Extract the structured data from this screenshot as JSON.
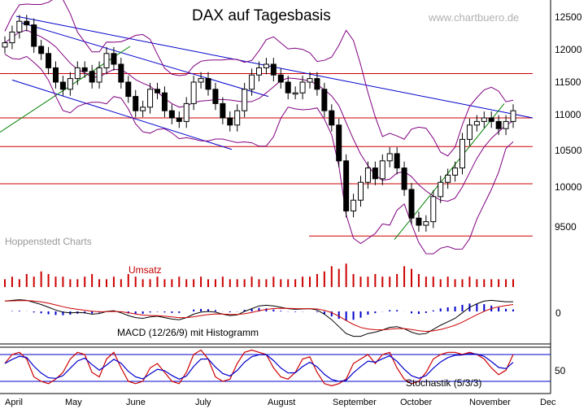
{
  "chart_data": {
    "type": "candlestick",
    "title": "DAX auf Tagesbasis",
    "watermark": "www.chartbuero.de",
    "source": "Hoppenstedt Charts",
    "months": [
      "April",
      "May",
      "June",
      "July",
      "August",
      "September",
      "October",
      "November",
      "Dec"
    ],
    "price_axis": {
      "ticks": [
        "12500",
        "12000",
        "11500",
        "11000",
        "10500",
        "10000",
        "9500"
      ],
      "range": [
        9000,
        12700
      ]
    },
    "volume_label": "Umsatz",
    "macd": {
      "label": "MACD (12/26/9) mit Histogramm",
      "tick": "0"
    },
    "stochastic": {
      "label": "Stochastik (5/3/3)",
      "tick": "50",
      "levels": [
        20,
        80
      ]
    },
    "horizontal_levels": [
      11620,
      11000,
      10600,
      10080,
      9350
    ],
    "colors": {
      "candle": "#000000",
      "band": "#800080",
      "trend": "#0000cc",
      "support": "#cc0000",
      "uptrend": "#008000",
      "volume": "#cc0000",
      "histogram": "#0000cc",
      "stoch_k": "#cc0000",
      "stoch_d": "#0000cc"
    },
    "series": [
      {
        "name": "DAX close (approx.)",
        "values": [
          12050,
          12200,
          12350,
          12300,
          12000,
          11900,
          11700,
          11500,
          11400,
          11550,
          11700,
          11650,
          11500,
          11700,
          11900,
          11750,
          11500,
          11300,
          11100,
          11150,
          11400,
          11350,
          11100,
          11000,
          10950,
          11200,
          11500,
          11550,
          11400,
          11200,
          11000,
          10900,
          11100,
          11400,
          11600,
          11700,
          11750,
          11600,
          11500,
          11350,
          11350,
          11500,
          11550,
          11400,
          11100,
          10900,
          10400,
          9700,
          9850,
          10100,
          10300,
          10150,
          10400,
          10500,
          10300,
          10000,
          9600,
          9500,
          9550,
          9900,
          10100,
          10200,
          10300,
          10700,
          10900,
          10950,
          11000,
          10950,
          10850,
          10950,
          11100
        ]
      },
      {
        "name": "Volume (relative)",
        "values": [
          3,
          4,
          3,
          5,
          4,
          6,
          5,
          4,
          4,
          3,
          3,
          4,
          5,
          3,
          3,
          4,
          3,
          5,
          4,
          3,
          3,
          4,
          3,
          3,
          4,
          3,
          3,
          4,
          3,
          3,
          4,
          3,
          3,
          3,
          4,
          3,
          3,
          4,
          3,
          3,
          3,
          4,
          4,
          5,
          6,
          8,
          7,
          9,
          5,
          4,
          4,
          5,
          4,
          4,
          5,
          8,
          7,
          5,
          4,
          4,
          3,
          4,
          3,
          3,
          4,
          3,
          3,
          3,
          3,
          3,
          3
        ]
      },
      {
        "name": "MACD (approx.)",
        "values": [
          150,
          160,
          170,
          160,
          130,
          100,
          60,
          20,
          -10,
          -20,
          -15,
          -20,
          -40,
          -30,
          0,
          10,
          -20,
          -60,
          -90,
          -100,
          -80,
          -70,
          -90,
          -110,
          -120,
          -90,
          -40,
          -10,
          0,
          -10,
          -40,
          -60,
          -50,
          0,
          40,
          80,
          90,
          80,
          60,
          40,
          30,
          35,
          40,
          20,
          -40,
          -120,
          -220,
          -320,
          -360,
          -360,
          -320,
          -300,
          -270,
          -230,
          -220,
          -250,
          -300,
          -330,
          -320,
          -260,
          -200,
          -150,
          -100,
          -20,
          60,
          110,
          150,
          160,
          150,
          140,
          140
        ]
      },
      {
        "name": "Stochastik %K (approx.)",
        "values": [
          60,
          80,
          85,
          70,
          30,
          20,
          15,
          25,
          40,
          70,
          85,
          80,
          40,
          30,
          70,
          85,
          50,
          20,
          15,
          20,
          50,
          60,
          40,
          20,
          15,
          40,
          80,
          90,
          70,
          30,
          20,
          25,
          60,
          85,
          90,
          85,
          80,
          50,
          30,
          25,
          40,
          70,
          75,
          40,
          15,
          10,
          15,
          25,
          60,
          70,
          80,
          60,
          80,
          85,
          50,
          25,
          15,
          20,
          40,
          70,
          80,
          85,
          85,
          80,
          85,
          80,
          70,
          50,
          35,
          45,
          80
        ]
      }
    ]
  }
}
